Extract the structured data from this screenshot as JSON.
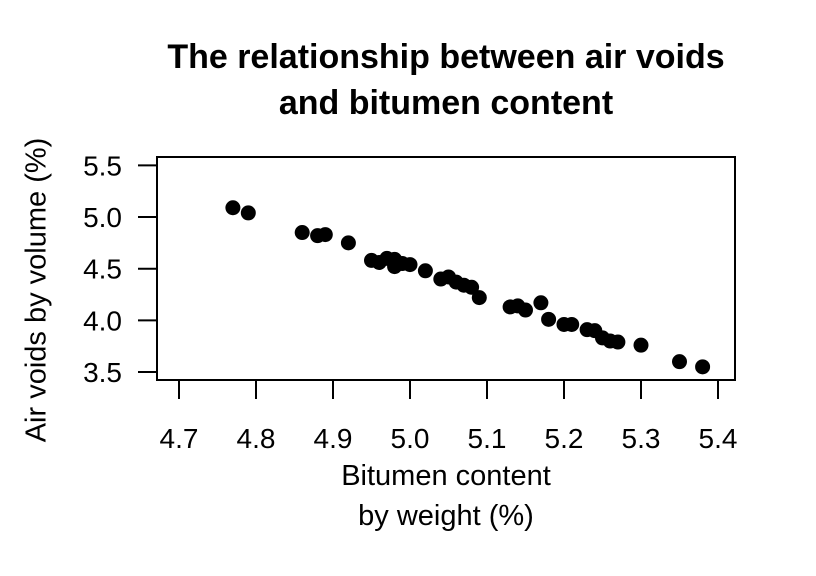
{
  "chart_data": {
    "type": "scatter",
    "title": "The relationship between air voids and bitumen content",
    "title_lines": [
      "The relationship between air voids",
      "and bitumen content"
    ],
    "xlabel": "Bitumen content by weight (%)",
    "xlabel_lines": [
      "Bitumen content",
      "by weight (%)"
    ],
    "ylabel": "Air voids by volume (%)",
    "xlim": [
      4.67,
      5.42
    ],
    "ylim": [
      3.42,
      5.58
    ],
    "x_ticks": [
      4.7,
      4.8,
      4.9,
      5.0,
      5.1,
      5.2,
      5.3,
      5.4
    ],
    "x_tick_labels": [
      "4.7",
      "4.8",
      "4.9",
      "5.0",
      "5.1",
      "5.2",
      "5.3",
      "5.4"
    ],
    "y_ticks": [
      3.5,
      4.0,
      4.5,
      5.0,
      5.5
    ],
    "y_tick_labels": [
      "3.5",
      "4.0",
      "4.5",
      "5.0",
      "5.5"
    ],
    "grid": false,
    "legend": null,
    "marker_color": "#000000",
    "points": [
      {
        "x": 4.77,
        "y": 5.09
      },
      {
        "x": 4.79,
        "y": 5.04
      },
      {
        "x": 4.86,
        "y": 4.85
      },
      {
        "x": 4.88,
        "y": 4.82
      },
      {
        "x": 4.89,
        "y": 4.83
      },
      {
        "x": 4.92,
        "y": 4.75
      },
      {
        "x": 4.95,
        "y": 4.58
      },
      {
        "x": 4.96,
        "y": 4.56
      },
      {
        "x": 4.97,
        "y": 4.6
      },
      {
        "x": 4.98,
        "y": 4.52
      },
      {
        "x": 4.98,
        "y": 4.59
      },
      {
        "x": 4.99,
        "y": 4.55
      },
      {
        "x": 5.0,
        "y": 4.54
      },
      {
        "x": 5.02,
        "y": 4.48
      },
      {
        "x": 5.04,
        "y": 4.4
      },
      {
        "x": 5.05,
        "y": 4.42
      },
      {
        "x": 5.06,
        "y": 4.37
      },
      {
        "x": 5.07,
        "y": 4.34
      },
      {
        "x": 5.08,
        "y": 4.32
      },
      {
        "x": 5.09,
        "y": 4.22
      },
      {
        "x": 5.13,
        "y": 4.13
      },
      {
        "x": 5.14,
        "y": 4.14
      },
      {
        "x": 5.15,
        "y": 4.1
      },
      {
        "x": 5.17,
        "y": 4.17
      },
      {
        "x": 5.18,
        "y": 4.01
      },
      {
        "x": 5.2,
        "y": 3.96
      },
      {
        "x": 5.21,
        "y": 3.96
      },
      {
        "x": 5.23,
        "y": 3.91
      },
      {
        "x": 5.24,
        "y": 3.9
      },
      {
        "x": 5.25,
        "y": 3.83
      },
      {
        "x": 5.26,
        "y": 3.8
      },
      {
        "x": 5.27,
        "y": 3.79
      },
      {
        "x": 5.3,
        "y": 3.76
      },
      {
        "x": 5.35,
        "y": 3.6
      },
      {
        "x": 5.38,
        "y": 3.55
      }
    ]
  }
}
